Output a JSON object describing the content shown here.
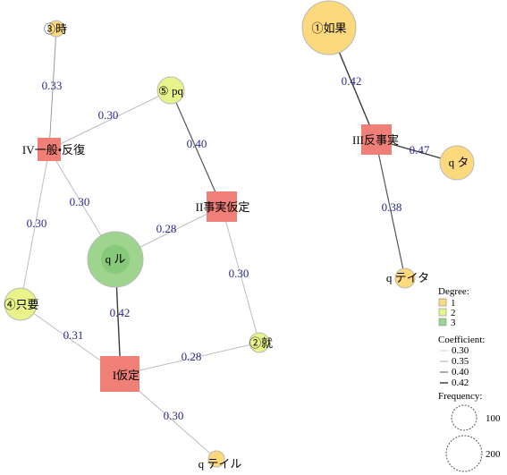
{
  "nodes": {
    "toki": {
      "label": "③時",
      "degree": "1"
    },
    "pq": {
      "label": "⑤ pq",
      "degree": "2"
    },
    "ippan": {
      "label": "IV一般•反復",
      "degree": "code"
    },
    "ru": {
      "label": "q ル",
      "degree": "3"
    },
    "jijitsu": {
      "label": "II事実仮定",
      "degree": "code"
    },
    "zhiyao": {
      "label": "④只要",
      "degree": "2"
    },
    "jiu": {
      "label": "②就",
      "degree": "2"
    },
    "katei": {
      "label": "I仮定",
      "degree": "code"
    },
    "teiru": {
      "label": "q テイル",
      "degree": "1"
    },
    "ruguo": {
      "label": "①如果",
      "degree": "1"
    },
    "hanjijitsu": {
      "label": "III反事実",
      "degree": "code"
    },
    "ta": {
      "label": "q タ",
      "degree": "1"
    },
    "teita": {
      "label": "q テイタ",
      "degree": "1"
    }
  },
  "edges": [
    {
      "from": "toki",
      "to": "ippan",
      "label": "0.33",
      "coef": 0.33
    },
    {
      "from": "ippan",
      "to": "pq",
      "label": "0.30",
      "coef": 0.3
    },
    {
      "from": "pq",
      "to": "jijitsu",
      "label": "0.40",
      "coef": 0.4
    },
    {
      "from": "ippan",
      "to": "ru",
      "label": "0.30",
      "coef": 0.3
    },
    {
      "from": "ippan",
      "to": "zhiyao",
      "label": "0.30",
      "coef": 0.3
    },
    {
      "from": "ru",
      "to": "jijitsu",
      "label": "0.28",
      "coef": 0.28
    },
    {
      "from": "jijitsu",
      "to": "jiu",
      "label": "0.30",
      "coef": 0.3
    },
    {
      "from": "ru",
      "to": "katei",
      "label": "0.42",
      "coef": 0.42
    },
    {
      "from": "zhiyao",
      "to": "katei",
      "label": "0.31",
      "coef": 0.31
    },
    {
      "from": "katei",
      "to": "jiu",
      "label": "0.28",
      "coef": 0.28
    },
    {
      "from": "katei",
      "to": "teiru",
      "label": "0.30",
      "coef": 0.3
    },
    {
      "from": "ruguo",
      "to": "hanjijitsu",
      "label": "0.42",
      "coef": 0.42
    },
    {
      "from": "hanjijitsu",
      "to": "ta",
      "label": "0.47",
      "coef": 0.47
    },
    {
      "from": "hanjijitsu",
      "to": "teita",
      "label": "0.38",
      "coef": 0.38
    }
  ],
  "legend": {
    "degree_title": "Degree:",
    "degree_items": [
      {
        "label": "1",
        "color": "#fcd97c"
      },
      {
        "label": "2",
        "color": "#e8f48a"
      },
      {
        "label": "3",
        "color": "#9ed48e"
      }
    ],
    "coef_title": "Coefficient:",
    "coef_items": [
      "0.30",
      "0.35",
      "0.40",
      "0.42"
    ],
    "freq_title": "Frequency:",
    "freq_items": [
      "100",
      "200"
    ]
  },
  "colors": {
    "code_fill": "#f07f78",
    "deg1": "#fcd97c",
    "deg2": "#e8f48a",
    "deg3": "#9ed48e",
    "edge_label": "#2a2a8c"
  }
}
